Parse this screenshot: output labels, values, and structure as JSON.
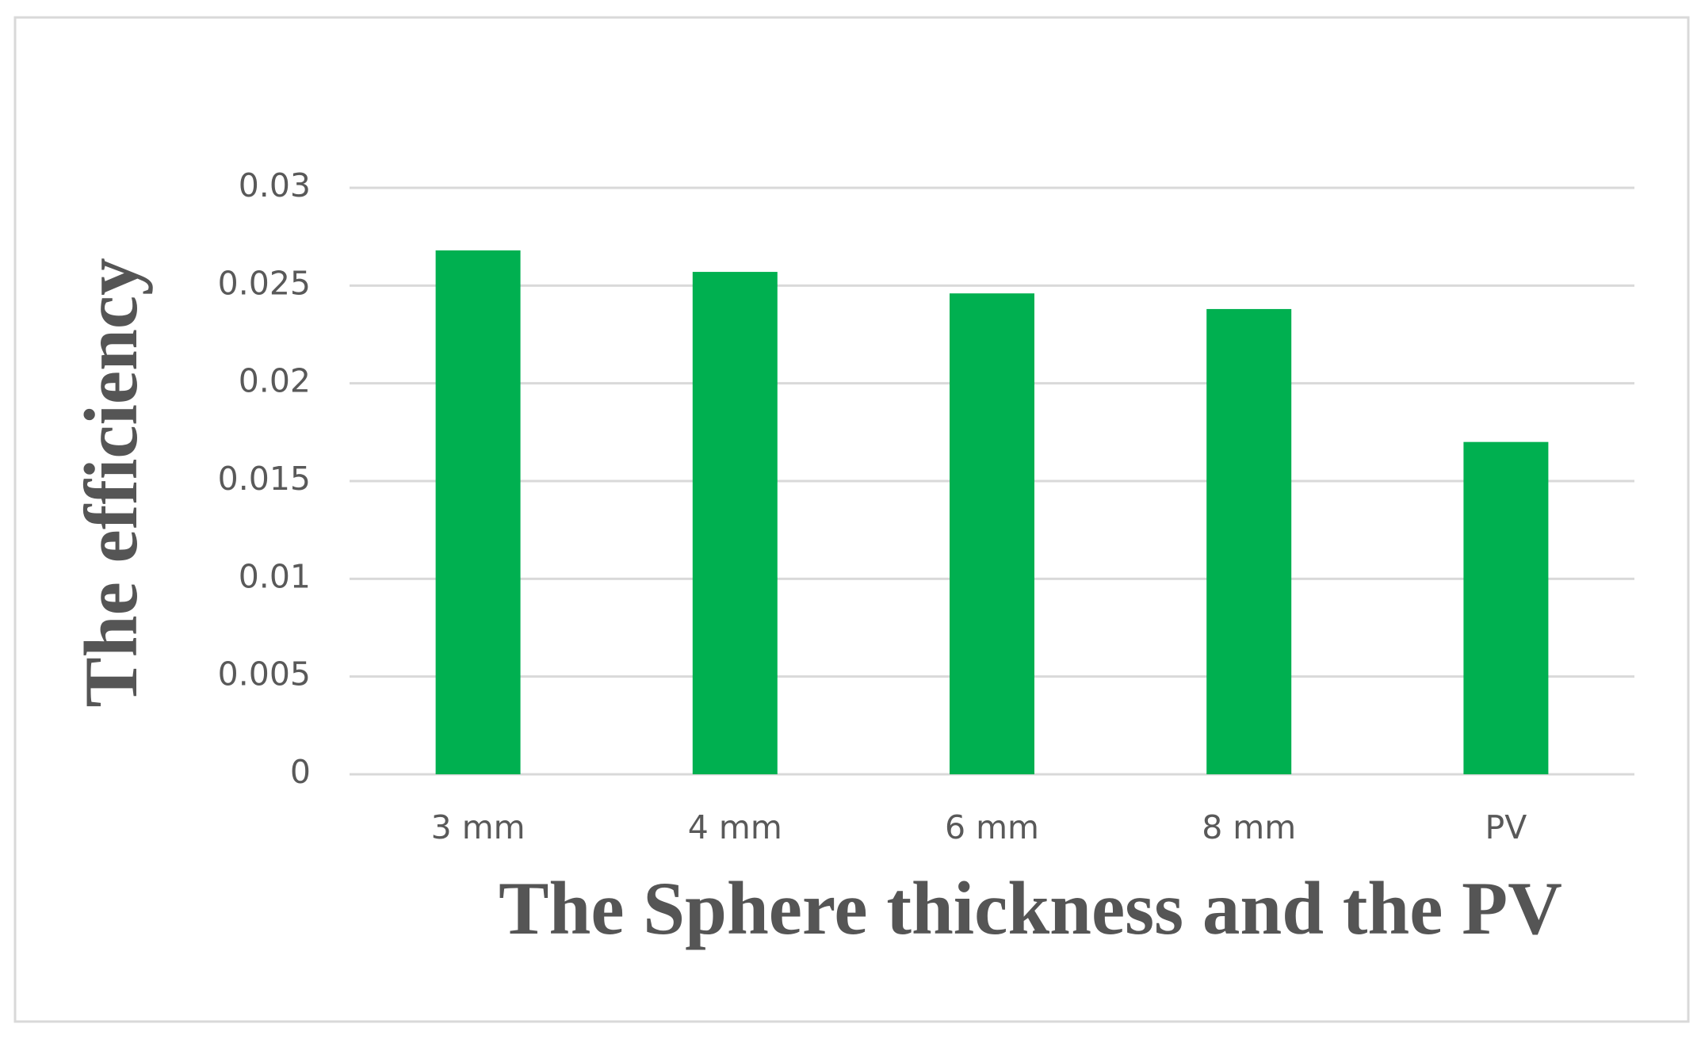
{
  "chart_data": {
    "type": "bar",
    "x_label": "The Sphere thickness and the PV",
    "y_label": "The efficiency",
    "categories": [
      "3 mm",
      "4 mm",
      "6 mm",
      "8 mm",
      "PV"
    ],
    "values": [
      0.0268,
      0.0257,
      0.0246,
      0.0238,
      0.017
    ],
    "color": "#00b050",
    "ylim": [
      0,
      0.03
    ],
    "yticks": [
      0,
      0.005,
      0.01,
      0.015,
      0.02,
      0.025,
      0.03
    ],
    "grid": true
  }
}
